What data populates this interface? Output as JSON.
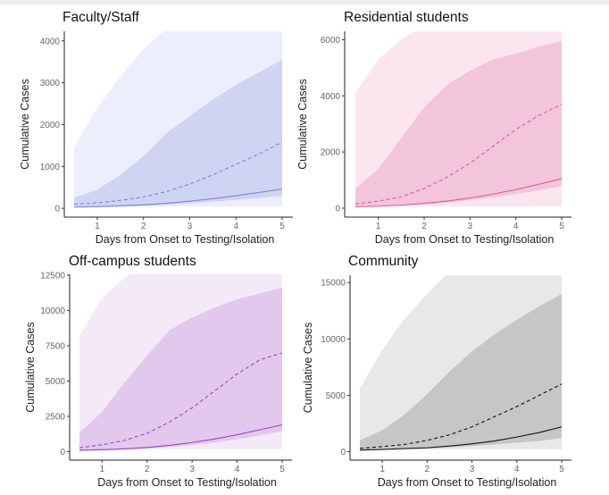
{
  "chart_data": [
    {
      "type": "area",
      "title": "Faculty/Staff",
      "xlabel": "Days from Onset to Testing/Isolation",
      "ylabel": "Cumulative Cases",
      "x": [
        0.5,
        1,
        1.5,
        2,
        2.5,
        3,
        3.5,
        4,
        4.5,
        5
      ],
      "xticks": [
        1,
        2,
        3,
        4,
        5
      ],
      "yticks": [
        0,
        1000,
        2000,
        3000,
        4000
      ],
      "ylim": [
        -210,
        4230
      ],
      "color": "#7b80e0",
      "fill_outer": "#eceefb",
      "fill_inner": "#d0d4f3",
      "outer_band": {
        "lower": [
          40,
          40,
          40,
          40,
          40,
          40,
          40,
          40,
          45,
          50
        ],
        "upper": [
          1450,
          2400,
          3150,
          3800,
          4300,
          4700,
          5000,
          5300,
          5600,
          5900
        ]
      },
      "inner_band": {
        "lower": [
          20,
          30,
          40,
          60,
          90,
          120,
          160,
          200,
          250,
          300
        ],
        "upper": [
          250,
          450,
          800,
          1250,
          1800,
          2200,
          2600,
          2950,
          3250,
          3550
        ]
      },
      "dashed": [
        100,
        130,
        190,
        270,
        400,
        580,
        800,
        1050,
        1300,
        1580
      ],
      "solid": [
        30,
        40,
        60,
        85,
        120,
        170,
        230,
        300,
        380,
        460
      ],
      "grid": false
    },
    {
      "type": "area",
      "title": "Residential students",
      "xlabel": "Days from Onset to Testing/Isolation",
      "ylabel": "Cumulative Cases",
      "x": [
        0.5,
        1,
        1.5,
        2,
        2.5,
        3,
        3.5,
        4,
        4.5,
        5
      ],
      "xticks": [
        1,
        2,
        3,
        4,
        5
      ],
      "yticks": [
        0,
        2000,
        4000,
        6000
      ],
      "ylim": [
        -320,
        6300
      ],
      "color": "#e8559a",
      "fill_outer": "#fbe6ef",
      "fill_inner": "#f2c5db",
      "outer_band": {
        "lower": [
          60,
          60,
          60,
          60,
          60,
          60,
          60,
          60,
          65,
          70
        ],
        "upper": [
          4100,
          5300,
          6000,
          6500,
          6900,
          7300,
          7600,
          7900,
          8200,
          8500
        ]
      },
      "inner_band": {
        "lower": [
          40,
          60,
          90,
          140,
          200,
          280,
          380,
          500,
          630,
          780
        ],
        "upper": [
          700,
          1400,
          2500,
          3600,
          4400,
          4900,
          5300,
          5500,
          5750,
          5950
        ]
      },
      "dashed": [
        150,
        250,
        400,
        700,
        1100,
        1600,
        2200,
        2800,
        3300,
        3700
      ],
      "solid": [
        50,
        70,
        110,
        170,
        250,
        360,
        500,
        660,
        850,
        1050
      ],
      "grid": false
    },
    {
      "type": "area",
      "title": "Off-campus students",
      "xlabel": "Days from Onset to Testing/Isolation",
      "ylabel": "Cumulative Cases",
      "x": [
        0.5,
        1,
        1.5,
        2,
        2.5,
        3,
        3.5,
        4,
        4.5,
        5
      ],
      "xticks": [
        1,
        2,
        3,
        4,
        5
      ],
      "yticks": [
        0,
        2500,
        5000,
        7500,
        10000,
        12500
      ],
      "ylim": [
        -600,
        12560
      ],
      "color": "#a040d0",
      "fill_outer": "#f4e9f7",
      "fill_inner": "#e2c8ec",
      "outer_band": {
        "lower": [
          170,
          170,
          170,
          170,
          170,
          170,
          170,
          170,
          170,
          170
        ],
        "upper": [
          8200,
          10900,
          12300,
          13500,
          14300,
          15000,
          15500,
          16000,
          16400,
          16800
        ]
      },
      "inner_band": {
        "lower": [
          60,
          90,
          150,
          230,
          330,
          480,
          650,
          880,
          1150,
          1450
        ],
        "upper": [
          1350,
          2800,
          4900,
          6800,
          8600,
          9500,
          10200,
          10800,
          11200,
          11600
        ]
      },
      "dashed": [
        280,
        480,
        800,
        1300,
        2100,
        3100,
        4300,
        5500,
        6500,
        7000
      ],
      "solid": [
        100,
        140,
        200,
        300,
        450,
        650,
        900,
        1200,
        1550,
        1900
      ],
      "grid": false
    },
    {
      "type": "area",
      "title": "Community",
      "xlabel": "Days from Onset to Testing/Isolation",
      "ylabel": "Cumulative Cases",
      "x": [
        0.5,
        1,
        1.5,
        2,
        2.5,
        3,
        3.5,
        4,
        4.5,
        5
      ],
      "xticks": [
        1,
        2,
        3,
        4,
        5
      ],
      "yticks": [
        0,
        5000,
        10000,
        15000
      ],
      "ylim": [
        -750,
        15650
      ],
      "color": "#111111",
      "fill_outer": "#e8e8e8",
      "fill_inner": "#c6c6c6",
      "outer_band": {
        "lower": [
          200,
          200,
          200,
          200,
          200,
          200,
          200,
          200,
          200,
          200
        ],
        "upper": [
          5600,
          9000,
          11800,
          14000,
          16000,
          17500,
          18500,
          19500,
          20300,
          21000
        ]
      },
      "inner_band": {
        "lower": [
          100,
          140,
          200,
          280,
          380,
          500,
          650,
          800,
          950,
          1200
        ],
        "upper": [
          1000,
          1900,
          3300,
          5100,
          7100,
          8900,
          10400,
          11700,
          12900,
          14000
        ]
      },
      "dashed": [
        300,
        450,
        650,
        1000,
        1500,
        2200,
        3100,
        4000,
        5000,
        6000
      ],
      "solid": [
        150,
        200,
        280,
        350,
        500,
        700,
        950,
        1300,
        1700,
        2200
      ],
      "grid": false
    }
  ]
}
